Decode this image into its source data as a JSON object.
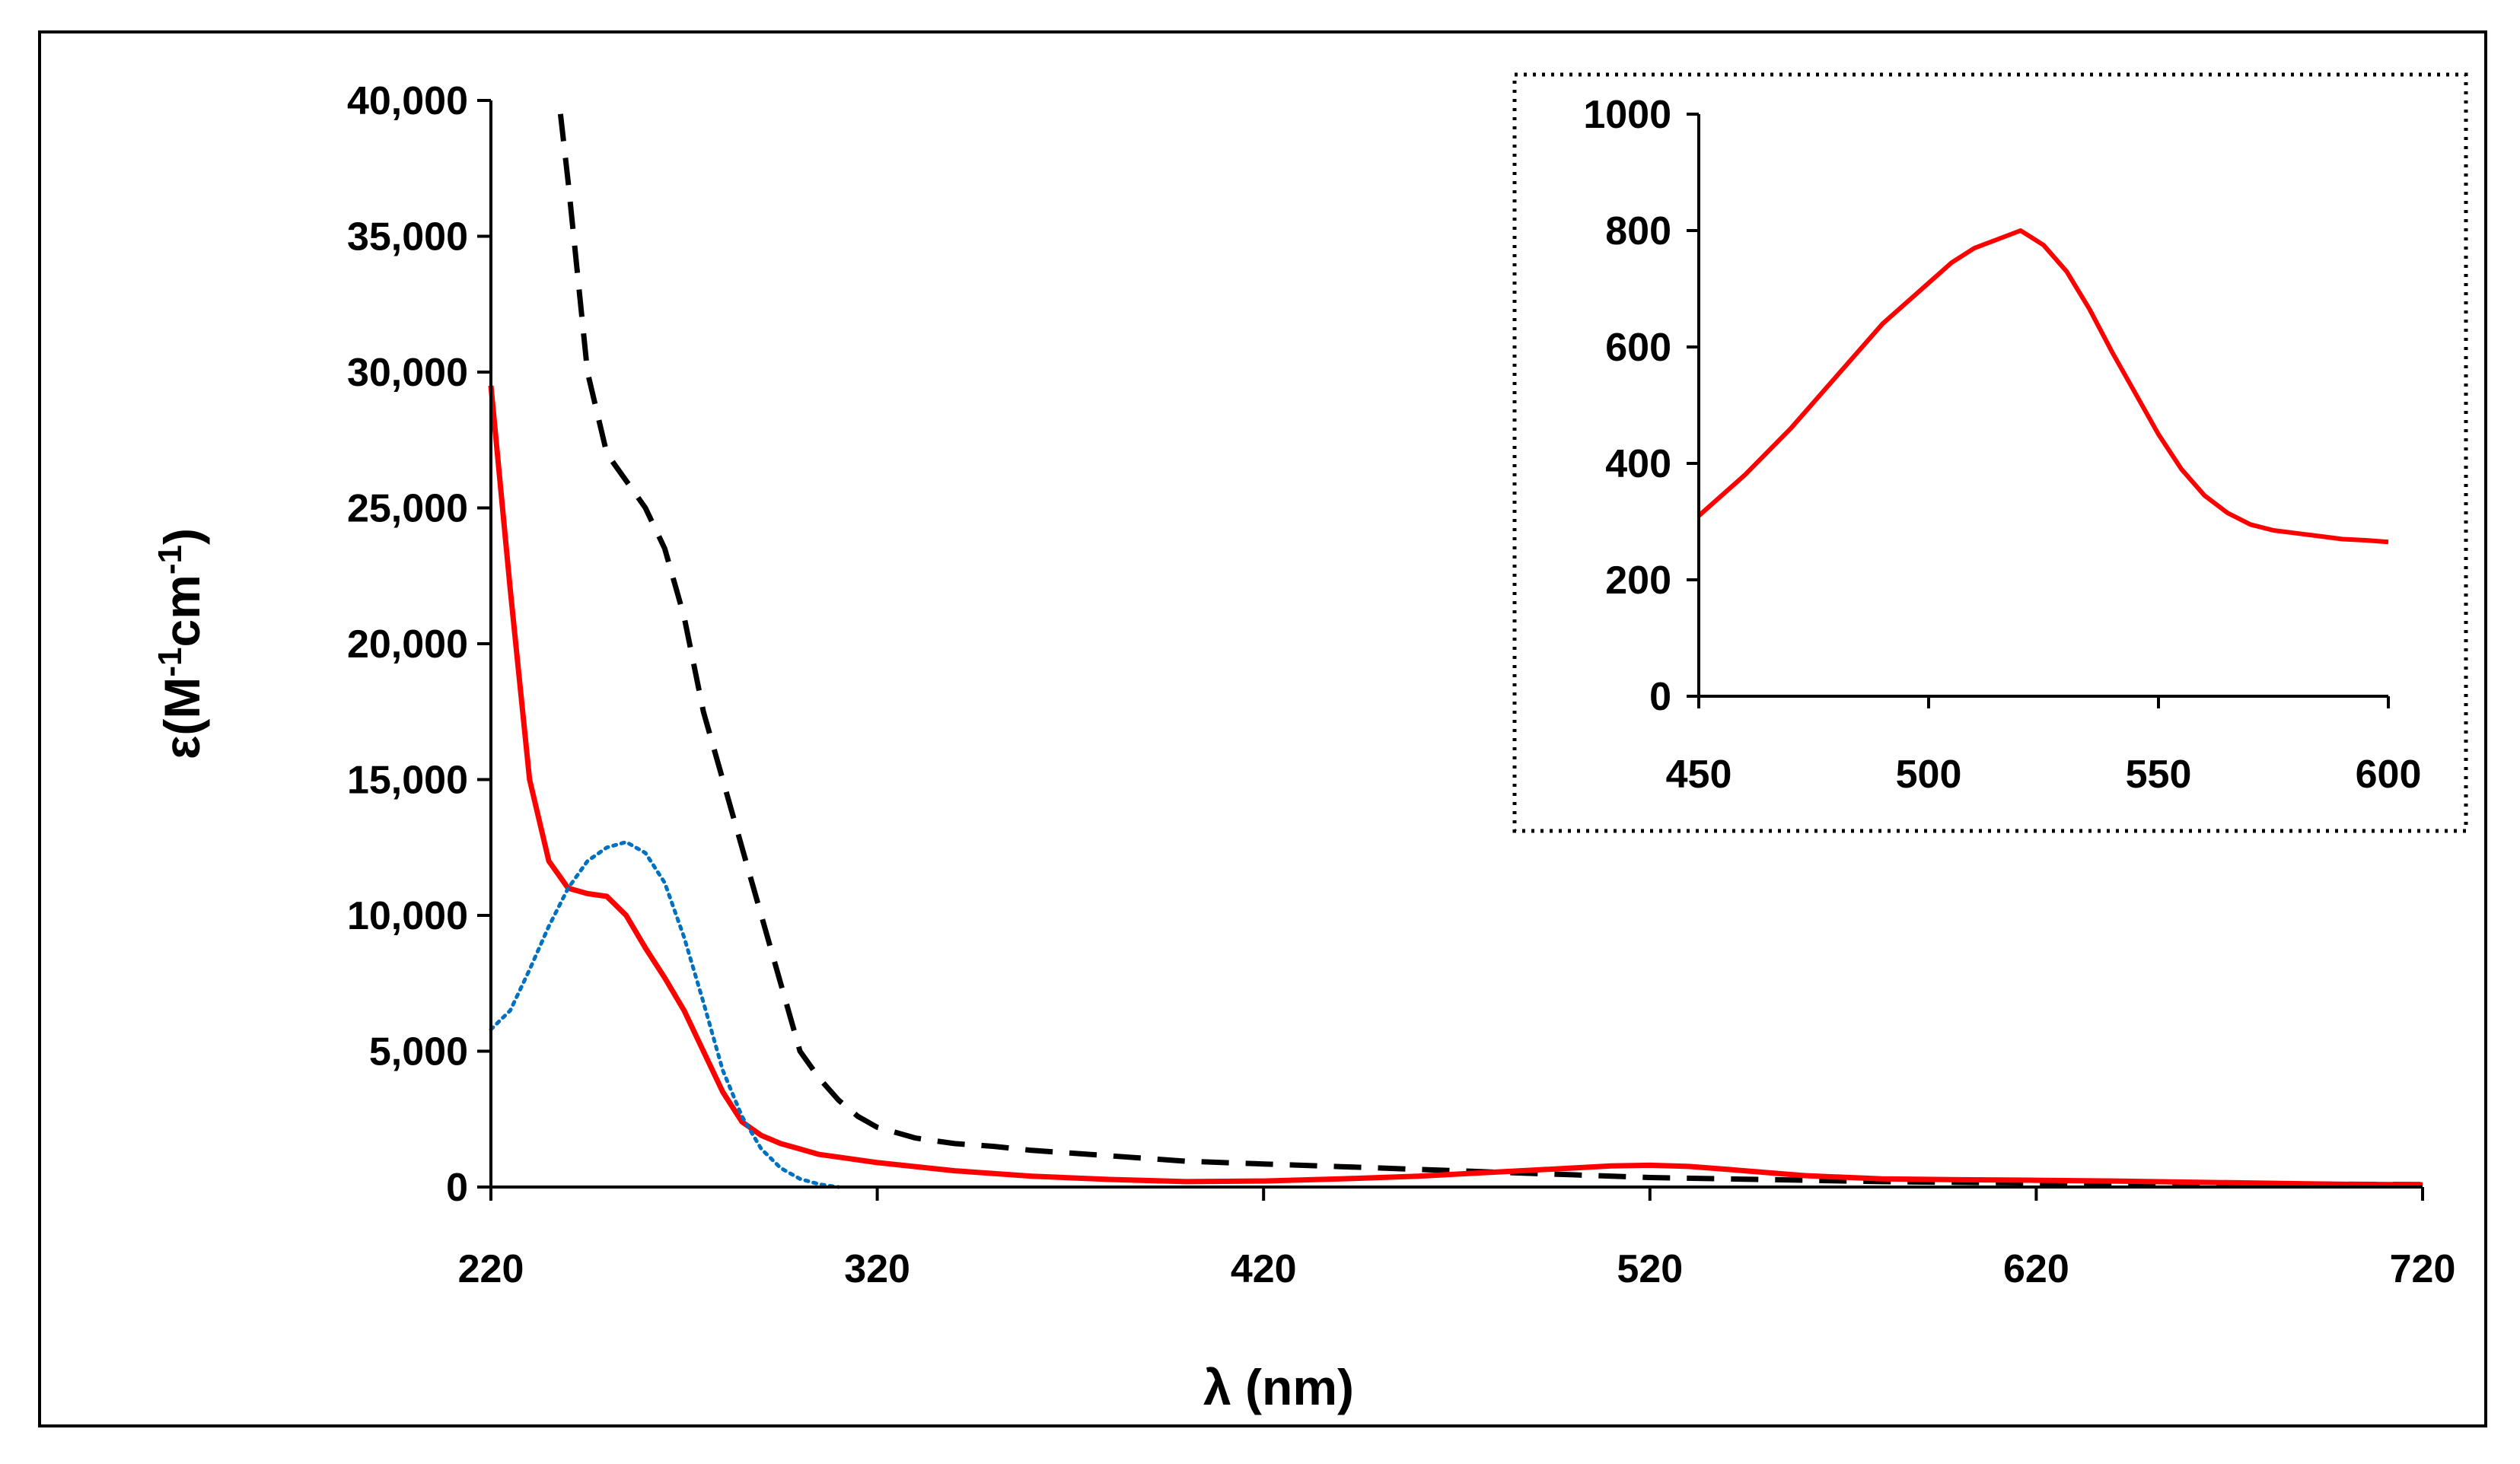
{
  "chart_data": [
    {
      "id": "main",
      "type": "line",
      "xlabel": "λ (nm)",
      "ylabel_prefix": "ε(M",
      "ylabel_sup1": "-1",
      "ylabel_mid": "cm",
      "ylabel_sup2": "-1",
      "ylabel_suffix": ")",
      "xlim": [
        220,
        720
      ],
      "ylim": [
        0,
        40000
      ],
      "xticks": [
        220,
        320,
        420,
        520,
        620,
        720
      ],
      "yticks": [
        0,
        5000,
        10000,
        15000,
        20000,
        25000,
        30000,
        35000,
        40000
      ],
      "xtick_labels": [
        "220",
        "320",
        "420",
        "520",
        "620",
        "720"
      ],
      "ytick_labels": [
        "0",
        "5,000",
        "10,000",
        "15,000",
        "20,000",
        "25,000",
        "30,000",
        "35,000",
        "40,000"
      ],
      "grid": false,
      "series": [
        {
          "name": "black dashed",
          "color": "#000000",
          "style": "dashed",
          "x": [
            238,
            240,
            245,
            250,
            255,
            260,
            265,
            270,
            275,
            280,
            285,
            290,
            295,
            300,
            305,
            310,
            315,
            320,
            330,
            340,
            350,
            360,
            380,
            400,
            420,
            440,
            460,
            480,
            500,
            520,
            540,
            560,
            580,
            600,
            620,
            640,
            660,
            680,
            700,
            720
          ],
          "y": [
            39500,
            37000,
            30000,
            27000,
            26000,
            25000,
            23500,
            21000,
            17500,
            15000,
            12500,
            10000,
            7500,
            5000,
            4000,
            3200,
            2600,
            2200,
            1800,
            1600,
            1500,
            1350,
            1150,
            950,
            850,
            750,
            650,
            550,
            450,
            350,
            300,
            250,
            200,
            170,
            150,
            130,
            120,
            110,
            100,
            90
          ]
        },
        {
          "name": "red solid",
          "color": "#ff0000",
          "style": "solid",
          "x": [
            220,
            225,
            230,
            235,
            240,
            245,
            250,
            255,
            260,
            265,
            270,
            275,
            280,
            285,
            290,
            295,
            300,
            305,
            310,
            320,
            340,
            360,
            380,
            400,
            420,
            440,
            460,
            480,
            500,
            510,
            520,
            530,
            540,
            560,
            580,
            600,
            620,
            640,
            660,
            680,
            700,
            720
          ],
          "y": [
            29500,
            22000,
            15000,
            12000,
            11000,
            10800,
            10700,
            10000,
            8800,
            7700,
            6500,
            5000,
            3500,
            2400,
            1900,
            1600,
            1400,
            1200,
            1100,
            900,
            600,
            400,
            280,
            200,
            220,
            300,
            400,
            550,
            700,
            780,
            800,
            760,
            650,
            420,
            300,
            270,
            250,
            220,
            180,
            140,
            100,
            80
          ]
        },
        {
          "name": "blue dotted",
          "color": "#0070c0",
          "style": "dotted",
          "x": [
            220,
            225,
            230,
            235,
            240,
            245,
            250,
            255,
            260,
            265,
            270,
            275,
            280,
            285,
            290,
            295,
            300,
            305,
            310
          ],
          "y": [
            5800,
            6500,
            8000,
            9600,
            11000,
            12000,
            12500,
            12700,
            12300,
            11200,
            9200,
            6800,
            4300,
            2600,
            1400,
            700,
            300,
            100,
            0
          ]
        }
      ]
    },
    {
      "id": "inset",
      "type": "line",
      "xlim": [
        450,
        600
      ],
      "ylim": [
        0,
        1000
      ],
      "xticks": [
        450,
        500,
        550,
        600
      ],
      "yticks": [
        0,
        200,
        400,
        600,
        800,
        1000
      ],
      "xtick_labels": [
        "450",
        "500",
        "550",
        "600"
      ],
      "ytick_labels": [
        "0",
        "200",
        "400",
        "600",
        "800",
        "1000"
      ],
      "border": "dotted",
      "series": [
        {
          "name": "red inset",
          "color": "#ff0000",
          "style": "solid",
          "x": [
            450,
            460,
            470,
            480,
            490,
            500,
            505,
            510,
            515,
            520,
            525,
            530,
            535,
            540,
            545,
            550,
            555,
            560,
            565,
            570,
            575,
            580,
            585,
            590,
            595,
            600
          ],
          "y": [
            310,
            380,
            460,
            550,
            640,
            710,
            745,
            770,
            785,
            800,
            775,
            730,
            665,
            590,
            520,
            450,
            390,
            345,
            315,
            295,
            285,
            280,
            275,
            270,
            268,
            265
          ]
        }
      ]
    }
  ]
}
